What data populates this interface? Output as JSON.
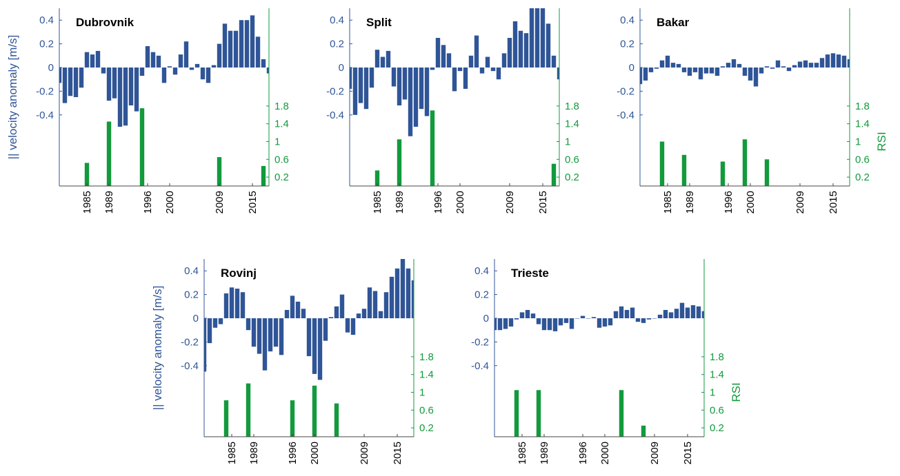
{
  "chart_data": [
    {
      "type": "bar",
      "title": "Dubrovnik",
      "ylabel": "|| velocity anomaly [m/s]",
      "x": [
        1980,
        1981,
        1982,
        1983,
        1984,
        1985,
        1986,
        1987,
        1988,
        1989,
        1990,
        1991,
        1992,
        1993,
        1994,
        1995,
        1996,
        1997,
        1998,
        1999,
        2000,
        2001,
        2002,
        2003,
        2004,
        2005,
        2006,
        2007,
        2008,
        2009,
        2010,
        2011,
        2012,
        2013,
        2014,
        2015,
        2016,
        2017,
        2018
      ],
      "series": [
        {
          "color": "#2f5597",
          "values": [
            -0.13,
            -0.3,
            -0.24,
            -0.25,
            -0.17,
            0.13,
            0.11,
            0.14,
            -0.05,
            -0.28,
            -0.26,
            -0.5,
            -0.49,
            -0.32,
            -0.37,
            -0.07,
            0.18,
            0.13,
            0.1,
            -0.13,
            0.01,
            -0.06,
            0.11,
            0.22,
            -0.02,
            0.03,
            -0.1,
            -0.13,
            0.02,
            0.2,
            0.37,
            0.31,
            0.31,
            0.4,
            0.4,
            0.44,
            0.26,
            0.07,
            -0.05
          ]
        },
        {
          "color": "#129a3c",
          "axis": "y2",
          "values": [
            null,
            null,
            null,
            null,
            null,
            0.52,
            null,
            null,
            null,
            1.45,
            null,
            null,
            null,
            null,
            null,
            1.75,
            null,
            null,
            null,
            null,
            null,
            null,
            null,
            null,
            null,
            null,
            null,
            null,
            null,
            0.65,
            null,
            null,
            null,
            null,
            null,
            null,
            null,
            0.45,
            null
          ]
        }
      ],
      "xlim": [
        1980,
        2018
      ],
      "xticks": [
        1985,
        1989,
        1996,
        2000,
        2009,
        2015
      ],
      "ylim": [
        -1,
        0.5
      ],
      "yticks": [
        -0.4,
        -0.2,
        0,
        0.2,
        0.4
      ],
      "y2lim": [
        0,
        4
      ],
      "y2ticks": [
        0.2,
        0.6,
        1,
        1.4,
        1.8
      ]
    },
    {
      "type": "bar",
      "title": "Split",
      "x": [
        1980,
        1981,
        1982,
        1983,
        1984,
        1985,
        1986,
        1987,
        1988,
        1989,
        1990,
        1991,
        1992,
        1993,
        1994,
        1995,
        1996,
        1997,
        1998,
        1999,
        2000,
        2001,
        2002,
        2003,
        2004,
        2005,
        2006,
        2007,
        2008,
        2009,
        2010,
        2011,
        2012,
        2013,
        2014,
        2015,
        2016,
        2017,
        2018
      ],
      "series": [
        {
          "color": "#2f5597",
          "values": [
            -0.18,
            -0.4,
            -0.3,
            -0.35,
            -0.17,
            0.15,
            0.09,
            0.14,
            -0.16,
            -0.32,
            -0.27,
            -0.58,
            -0.5,
            -0.35,
            -0.41,
            -0.02,
            0.25,
            0.19,
            0.12,
            -0.2,
            -0.03,
            -0.18,
            0.1,
            0.27,
            -0.05,
            0.09,
            -0.03,
            -0.1,
            0.12,
            0.25,
            0.39,
            0.31,
            0.29,
            0.5,
            0.5,
            0.5,
            0.37,
            0.1,
            -0.1
          ]
        },
        {
          "color": "#129a3c",
          "axis": "y2",
          "values": [
            null,
            null,
            null,
            null,
            null,
            0.35,
            null,
            null,
            null,
            1.05,
            null,
            null,
            null,
            null,
            null,
            1.7,
            null,
            null,
            null,
            null,
            null,
            null,
            null,
            null,
            null,
            null,
            null,
            null,
            null,
            null,
            null,
            null,
            null,
            null,
            null,
            null,
            null,
            0.5,
            null
          ]
        }
      ],
      "xlim": [
        1980,
        2018
      ],
      "xticks": [
        1985,
        1989,
        1996,
        2000,
        2009,
        2015
      ],
      "ylim": [
        -1,
        0.5
      ],
      "yticks": [
        -0.4,
        -0.2,
        0,
        0.2,
        0.4
      ],
      "y2lim": [
        0,
        4
      ],
      "y2ticks": [
        0.2,
        0.6,
        1,
        1.4,
        1.8
      ]
    },
    {
      "type": "bar",
      "title": "Bakar",
      "y2label": "RSI",
      "x": [
        1980,
        1981,
        1982,
        1983,
        1984,
        1985,
        1986,
        1987,
        1988,
        1989,
        1990,
        1991,
        1992,
        1993,
        1994,
        1995,
        1996,
        1997,
        1998,
        1999,
        2000,
        2001,
        2002,
        2003,
        2004,
        2005,
        2006,
        2007,
        2008,
        2009,
        2010,
        2011,
        2012,
        2013,
        2014,
        2015,
        2016,
        2017,
        2018
      ],
      "series": [
        {
          "color": "#2f5597",
          "values": [
            -0.14,
            -0.11,
            -0.04,
            -0.01,
            0.06,
            0.1,
            0.04,
            0.03,
            -0.04,
            -0.07,
            -0.04,
            -0.1,
            -0.05,
            -0.05,
            -0.07,
            0.01,
            0.04,
            0.07,
            0.03,
            -0.07,
            -0.11,
            -0.16,
            -0.05,
            0.01,
            -0.01,
            0.06,
            0.01,
            -0.03,
            0.02,
            0.05,
            0.06,
            0.04,
            0.04,
            0.08,
            0.11,
            0.12,
            0.11,
            0.1,
            0.07
          ]
        },
        {
          "color": "#129a3c",
          "axis": "y2",
          "values": [
            null,
            null,
            null,
            null,
            1.0,
            null,
            null,
            null,
            0.7,
            null,
            null,
            null,
            null,
            null,
            null,
            0.55,
            null,
            null,
            null,
            1.05,
            null,
            null,
            null,
            0.6,
            null,
            null,
            null,
            null,
            null,
            null,
            null,
            null,
            null,
            null,
            null,
            null,
            null,
            null,
            null
          ]
        }
      ],
      "xlim": [
        1980,
        2018
      ],
      "xticks": [
        1985,
        1989,
        1996,
        2000,
        2009,
        2015
      ],
      "ylim": [
        -1,
        0.5
      ],
      "yticks": [
        -0.4,
        -0.2,
        0,
        0.2,
        0.4
      ],
      "y2lim": [
        0,
        4
      ],
      "y2ticks": [
        0.2,
        0.6,
        1,
        1.4,
        1.8
      ]
    },
    {
      "type": "bar",
      "title": "Rovinj",
      "ylabel": "|| velocity anomaly [m/s]",
      "x": [
        1980,
        1981,
        1982,
        1983,
        1984,
        1985,
        1986,
        1987,
        1988,
        1989,
        1990,
        1991,
        1992,
        1993,
        1994,
        1995,
        1996,
        1997,
        1998,
        1999,
        2000,
        2001,
        2002,
        2003,
        2004,
        2005,
        2006,
        2007,
        2008,
        2009,
        2010,
        2011,
        2012,
        2013,
        2014,
        2015,
        2016,
        2017,
        2018
      ],
      "series": [
        {
          "color": "#2f5597",
          "values": [
            -0.45,
            -0.21,
            -0.08,
            -0.05,
            0.21,
            0.26,
            0.25,
            0.22,
            -0.1,
            -0.24,
            -0.3,
            -0.44,
            -0.28,
            -0.24,
            -0.31,
            0.07,
            0.19,
            0.14,
            0.08,
            -0.32,
            -0.47,
            -0.52,
            -0.19,
            0.01,
            0.1,
            0.2,
            -0.12,
            -0.14,
            0.04,
            0.08,
            0.26,
            0.23,
            0.06,
            0.22,
            0.35,
            0.42,
            0.5,
            0.42,
            0.32
          ]
        },
        {
          "color": "#129a3c",
          "axis": "y2",
          "values": [
            null,
            null,
            null,
            null,
            0.82,
            null,
            null,
            null,
            1.2,
            null,
            null,
            null,
            null,
            null,
            null,
            null,
            0.82,
            null,
            null,
            null,
            1.15,
            null,
            null,
            null,
            0.75,
            null,
            null,
            null,
            null,
            null,
            null,
            null,
            null,
            null,
            null,
            null,
            null,
            null,
            null
          ]
        }
      ],
      "xlim": [
        1980,
        2018
      ],
      "xticks": [
        1985,
        1989,
        1996,
        2000,
        2009,
        2015
      ],
      "ylim": [
        -1,
        0.5
      ],
      "yticks": [
        -0.4,
        -0.2,
        0,
        0.2,
        0.4
      ],
      "y2lim": [
        0,
        4
      ],
      "y2ticks": [
        0.2,
        0.6,
        1,
        1.4,
        1.8
      ]
    },
    {
      "type": "bar",
      "title": "Trieste",
      "y2label": "RSI",
      "x": [
        1980,
        1981,
        1982,
        1983,
        1984,
        1985,
        1986,
        1987,
        1988,
        1989,
        1990,
        1991,
        1992,
        1993,
        1994,
        1995,
        1996,
        1997,
        1998,
        1999,
        2000,
        2001,
        2002,
        2003,
        2004,
        2005,
        2006,
        2007,
        2008,
        2009,
        2010,
        2011,
        2012,
        2013,
        2014,
        2015,
        2016,
        2017,
        2018
      ],
      "series": [
        {
          "color": "#2f5597",
          "values": [
            -0.1,
            -0.1,
            -0.09,
            -0.07,
            -0.01,
            0.05,
            0.07,
            0.04,
            -0.05,
            -0.1,
            -0.1,
            -0.11,
            -0.06,
            -0.04,
            -0.09,
            0.0,
            0.02,
            0.0,
            0.01,
            -0.08,
            -0.07,
            -0.06,
            0.06,
            0.1,
            0.07,
            0.09,
            -0.03,
            -0.04,
            -0.01,
            0.0,
            0.03,
            0.07,
            0.05,
            0.08,
            0.13,
            0.09,
            0.11,
            0.1,
            0.06
          ]
        },
        {
          "color": "#129a3c",
          "axis": "y2",
          "values": [
            null,
            null,
            null,
            null,
            1.05,
            null,
            null,
            null,
            1.05,
            null,
            null,
            null,
            null,
            null,
            null,
            null,
            null,
            null,
            null,
            null,
            null,
            null,
            null,
            1.05,
            null,
            null,
            null,
            0.25,
            null,
            null,
            null,
            null,
            null,
            null,
            null,
            null,
            null,
            null,
            null
          ]
        }
      ],
      "xlim": [
        1980,
        2018
      ],
      "xticks": [
        1985,
        1989,
        1996,
        2000,
        2009,
        2015
      ],
      "ylim": [
        -1,
        0.5
      ],
      "yticks": [
        -0.4,
        -0.2,
        0,
        0.2,
        0.4
      ],
      "y2lim": [
        0,
        4
      ],
      "y2ticks": [
        0.2,
        0.6,
        1,
        1.4,
        1.8
      ]
    }
  ]
}
